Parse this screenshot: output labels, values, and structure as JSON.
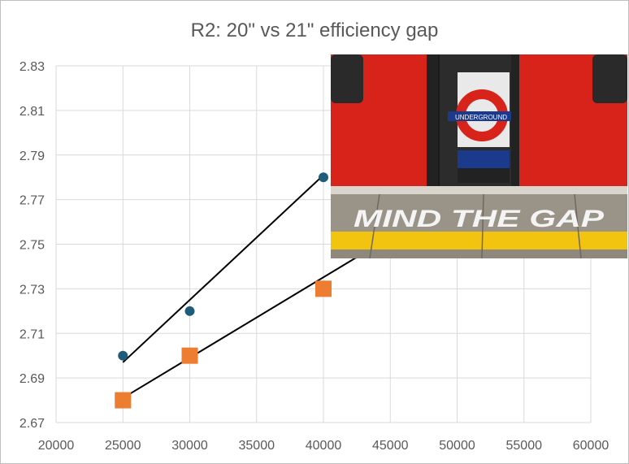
{
  "chart_data": {
    "type": "scatter",
    "title": "R2: 20\" vs 21\" efficiency gap",
    "xlabel": "",
    "ylabel": "",
    "xlim": [
      20000,
      60000
    ],
    "ylim": [
      2.67,
      2.83
    ],
    "xticks": [
      "20000",
      "25000",
      "30000",
      "35000",
      "40000",
      "45000",
      "50000",
      "55000",
      "60000"
    ],
    "yticks": [
      "2.67",
      "2.69",
      "2.71",
      "2.73",
      "2.75",
      "2.77",
      "2.79",
      "2.81",
      "2.83"
    ],
    "grid": true,
    "legend": "none",
    "series": [
      {
        "marker": "circle",
        "color": "#1f5c7a",
        "x": [
          25000,
          30000,
          40000
        ],
        "y": [
          2.7,
          2.72,
          2.78
        ],
        "trendline": {
          "x": [
            25000,
            40000
          ],
          "y": [
            2.697,
            2.781
          ]
        }
      },
      {
        "marker": "square",
        "color": "#ed7d31",
        "x": [
          25000,
          30000,
          40000
        ],
        "y": [
          2.68,
          2.7,
          2.73
        ],
        "trendline": {
          "x": [
            25000,
            43000
          ],
          "y": [
            2.681,
            2.746
          ]
        }
      }
    ]
  },
  "photo": {
    "sign_text": "UNDERGROUND",
    "platform_text": "MIND THE GAP",
    "colors": {
      "train_red": "#e2231a",
      "roundel_blue": "#1b3a8c",
      "platform_yellow": "#f2c40f"
    }
  }
}
